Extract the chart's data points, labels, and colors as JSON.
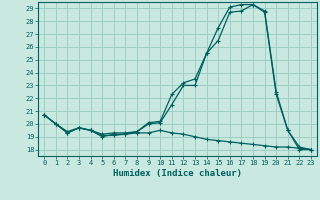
{
  "xlabel": "Humidex (Indice chaleur)",
  "xlim": [
    -0.5,
    23.5
  ],
  "ylim": [
    17.5,
    29.5
  ],
  "yticks": [
    18,
    19,
    20,
    21,
    22,
    23,
    24,
    25,
    26,
    27,
    28,
    29
  ],
  "xticks": [
    0,
    1,
    2,
    3,
    4,
    5,
    6,
    7,
    8,
    9,
    10,
    11,
    12,
    13,
    14,
    15,
    16,
    17,
    18,
    19,
    20,
    21,
    22,
    23
  ],
  "background_color": "#c8e8e0",
  "grid_color": "#9dcec4",
  "line_color": "#006060",
  "line1_y": [
    20.7,
    20.0,
    19.4,
    19.7,
    19.5,
    19.0,
    19.2,
    19.2,
    19.4,
    20.0,
    20.1,
    21.5,
    23.0,
    23.0,
    25.5,
    26.5,
    28.7,
    28.8,
    29.3,
    28.7,
    22.3,
    19.5,
    18.0,
    18.0
  ],
  "line2_y": [
    20.7,
    20.0,
    19.3,
    19.7,
    19.5,
    19.2,
    19.3,
    19.3,
    19.4,
    20.1,
    20.2,
    22.3,
    23.2,
    23.5,
    25.5,
    27.5,
    29.1,
    29.3,
    29.3,
    28.8,
    22.5,
    19.5,
    18.2,
    18.0
  ],
  "line3_y": [
    20.7,
    20.0,
    19.3,
    19.7,
    19.5,
    19.1,
    19.1,
    19.2,
    19.3,
    19.3,
    19.5,
    19.3,
    19.2,
    19.0,
    18.8,
    18.7,
    18.6,
    18.5,
    18.4,
    18.3,
    18.2,
    18.2,
    18.1,
    18.0
  ]
}
